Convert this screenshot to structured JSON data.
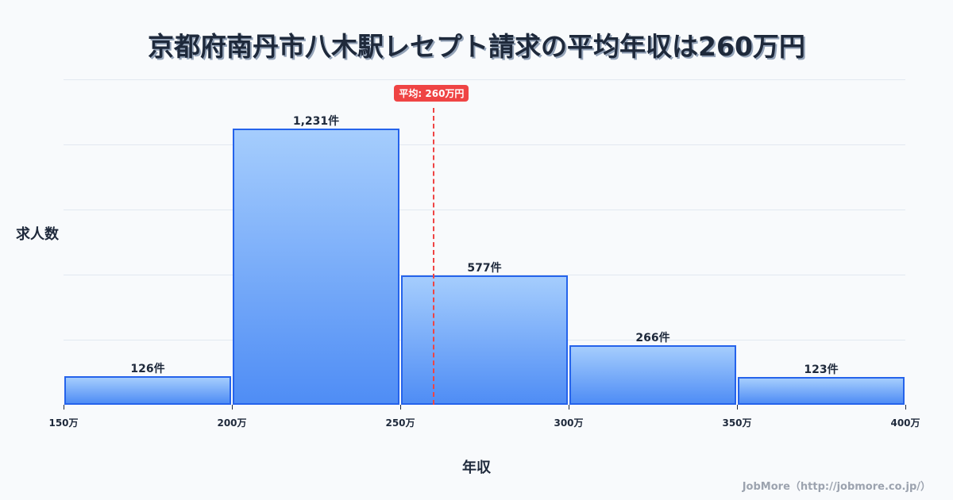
{
  "title": "京都府南丹市八木駅レセプト請求の平均年収は260万円",
  "axis": {
    "ylabel": "求人数",
    "xlabel": "年収"
  },
  "credit": "JobMore（http://jobmore.co.jp/）",
  "mean": {
    "label": "平均: 260万円",
    "value": 260,
    "color": "#ef4444"
  },
  "colors": {
    "bar_border": "#2563eb",
    "bar_top": "#a5cdfd",
    "bar_bottom": "#4f8df5",
    "grid": "#e2e8f0"
  },
  "chart_data": {
    "type": "bar",
    "title": "京都府南丹市八木駅レセプト請求の平均年収は260万円",
    "xlabel": "年収",
    "ylabel": "求人数",
    "categories": [
      "150万-200万",
      "200万-250万",
      "250万-300万",
      "300万-350万",
      "350万-400万"
    ],
    "values": [
      126,
      1231,
      577,
      266,
      123
    ],
    "value_labels": [
      "126件",
      "1,231件",
      "577件",
      "266件",
      "123件"
    ],
    "x_ticks": [
      "150万",
      "200万",
      "250万",
      "300万",
      "350万",
      "400万"
    ],
    "xlim": [
      150,
      400
    ],
    "ylim": [
      0,
      1450
    ],
    "grid": true,
    "annotations": [
      {
        "type": "vline",
        "x": 260,
        "label": "平均: 260万円",
        "style": "dashed",
        "color": "#ef4444"
      }
    ]
  }
}
